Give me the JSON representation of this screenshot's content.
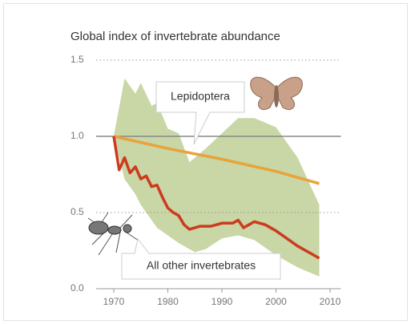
{
  "chart_data": {
    "type": "line",
    "title": "Global index of invertebrate abundance",
    "xlim": [
      1966,
      2012
    ],
    "xticks": [
      1970,
      1980,
      1990,
      2000,
      2010
    ],
    "ylim": [
      0,
      1.5
    ],
    "yticks": [
      {
        "value": 0,
        "label": "0.0"
      },
      0.5,
      {
        "value": 1,
        "label": "1.0"
      },
      1.5
    ],
    "hline": 1,
    "grid": true,
    "band": {
      "color": "#c9d6a6",
      "x": [
        1970,
        1972,
        1974,
        1975,
        1977,
        1978,
        1980,
        1982,
        1984,
        1985,
        1987,
        1990,
        1993,
        1996,
        2000,
        2004,
        2008
      ],
      "upper": [
        1.0,
        1.38,
        1.28,
        1.35,
        1.2,
        1.22,
        1.05,
        1.02,
        0.83,
        0.86,
        0.92,
        1.02,
        1.12,
        1.12,
        1.06,
        0.86,
        0.55
      ],
      "lower": [
        1.0,
        0.72,
        0.62,
        0.55,
        0.45,
        0.4,
        0.35,
        0.3,
        0.26,
        0.24,
        0.26,
        0.33,
        0.35,
        0.32,
        0.22,
        0.14,
        0.08
      ]
    },
    "series": [
      {
        "name": "Lepidoptera",
        "color": "#e8a33a",
        "x": [
          1970,
          1980,
          1990,
          2000,
          2008
        ],
        "values": [
          1.0,
          0.92,
          0.85,
          0.77,
          0.69
        ]
      },
      {
        "name": "All other invertebrates",
        "color": "#cc3b1e",
        "x": [
          1970,
          1971,
          1972,
          1973,
          1974,
          1975,
          1976,
          1977,
          1978,
          1979,
          1980,
          1981,
          1982,
          1983,
          1984,
          1986,
          1988,
          1990,
          1992,
          1993,
          1994,
          1995,
          1996,
          1998,
          2000,
          2002,
          2004,
          2006,
          2008
        ],
        "values": [
          1.0,
          0.78,
          0.86,
          0.76,
          0.8,
          0.72,
          0.74,
          0.67,
          0.68,
          0.6,
          0.53,
          0.5,
          0.48,
          0.42,
          0.39,
          0.41,
          0.41,
          0.43,
          0.43,
          0.45,
          0.4,
          0.42,
          0.44,
          0.42,
          0.38,
          0.33,
          0.28,
          0.24,
          0.2
        ]
      }
    ]
  }
}
